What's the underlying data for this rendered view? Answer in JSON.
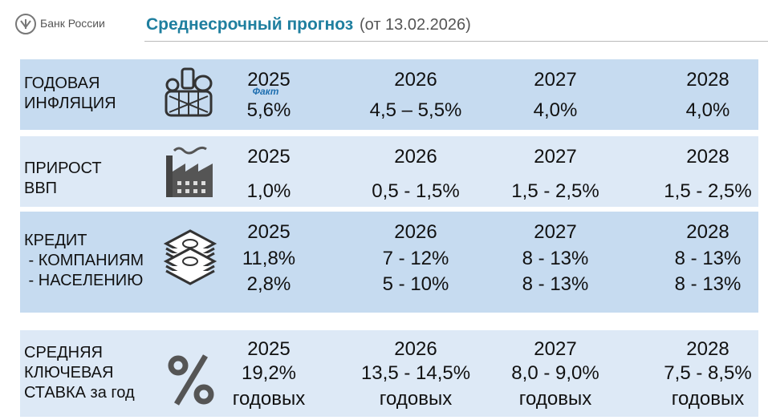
{
  "header": {
    "logo_text": "Банк России",
    "title": "Среднесрочный прогноз",
    "subtitle": "(от 13.02.2026)"
  },
  "sections": [
    {
      "label": [
        "ГОДОВАЯ",
        "ИНФЛЯЦИЯ"
      ],
      "icon": "basket",
      "columns": [
        {
          "year": 2025,
          "note": "Факт",
          "lines": [
            "5,6%"
          ]
        },
        {
          "year": 2026,
          "lines": [
            "4,5 – 5,5%"
          ]
        },
        {
          "year": 2027,
          "lines": [
            "4,0%"
          ]
        },
        {
          "year": 2028,
          "lines": [
            "4,0%"
          ]
        }
      ]
    },
    {
      "label": [
        "ПРИРОСТ",
        "ВВП"
      ],
      "icon": "factory",
      "columns": [
        {
          "year": 2025,
          "lines": [
            "1,0%"
          ]
        },
        {
          "year": 2026,
          "lines": [
            "0,5 - 1,5%"
          ]
        },
        {
          "year": 2027,
          "lines": [
            "1,5 - 2,5%"
          ]
        },
        {
          "year": 2028,
          "lines": [
            "1,5 - 2,5%"
          ]
        }
      ]
    },
    {
      "label": [
        "КРЕДИТ",
        " - КОМПАНИЯМ",
        " - НАСЕЛЕНИЮ"
      ],
      "icon": "money",
      "columns": [
        {
          "year": 2025,
          "lines": [
            "11,8%",
            "2,8%"
          ]
        },
        {
          "year": 2026,
          "lines": [
            "7 - 12%",
            "5 - 10%"
          ]
        },
        {
          "year": 2027,
          "lines": [
            "8 - 13%",
            "8 - 13%"
          ]
        },
        {
          "year": 2028,
          "lines": [
            "8 - 13%",
            "8 - 13%"
          ]
        }
      ]
    },
    {
      "label": [
        "СРЕДНЯЯ",
        "КЛЮЧЕВАЯ",
        "СТАВКА за год"
      ],
      "icon": "percent",
      "columns": [
        {
          "year": 2025,
          "lines": [
            "19,2%",
            "годовых"
          ]
        },
        {
          "year": 2026,
          "lines": [
            "13,5 - 14,5%",
            "годовых"
          ]
        },
        {
          "year": 2027,
          "lines": [
            "8,0 - 9,0%",
            "годовых"
          ]
        },
        {
          "year": 2028,
          "lines": [
            "7,5 - 8,5%",
            "годовых"
          ]
        }
      ]
    }
  ]
}
